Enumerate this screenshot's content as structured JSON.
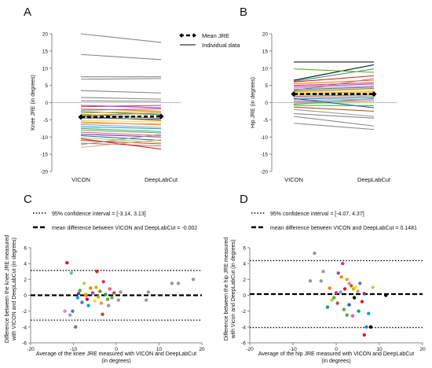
{
  "colors": {
    "axis": "#888888",
    "mean": "#000000",
    "palette": [
      "#e41a1c",
      "#377eb8",
      "#4daf4a",
      "#984ea3",
      "#ff7f00",
      "#c8b400",
      "#a65628",
      "#f781bf",
      "#999999",
      "#66c2a5",
      "#fc8d62",
      "#8da0cb",
      "#e78ac3",
      "#a6d854",
      "#ffd92f",
      "#1b9e77",
      "#d95f02",
      "#7570b3",
      "#e7298a",
      "#66a61e",
      "#e6ab02",
      "#a6761d",
      "#00a6d6",
      "#ff4fa0",
      "#5aae61",
      "#f4a582",
      "#b2182b",
      "#2166ac",
      "#6a3d9a",
      "#b15928"
    ]
  },
  "chart_data": [
    {
      "panel": "A",
      "type": "line",
      "categories": [
        "VICON",
        "DeepLabCut"
      ],
      "ylabel": "Knee JRE (in degrees)",
      "ylim": [
        -20,
        20
      ],
      "yticks": [
        -20,
        -15,
        -10,
        -5,
        0,
        5,
        10,
        15,
        20
      ],
      "legend": {
        "placement": "top-right",
        "items": [
          "Mean JRE",
          "Individual data"
        ]
      },
      "mean": [
        -4.2,
        -4.0
      ],
      "series": [
        {
          "values": [
            20,
            17.5
          ],
          "color": "#888888"
        },
        {
          "values": [
            14,
            12.5
          ],
          "color": "#888888"
        },
        {
          "values": [
            7.5,
            7.5
          ],
          "color": "#888888"
        },
        {
          "values": [
            6.8,
            7.0
          ],
          "color": "#888888"
        },
        {
          "values": [
            3.5,
            2.8
          ],
          "color": "#888888"
        },
        {
          "values": [
            1.5,
            1.0
          ],
          "color": "#888888"
        },
        {
          "values": [
            0.5,
            0.4
          ],
          "color": "#888888"
        },
        {
          "values": [
            -0.8,
            -1.5
          ],
          "color": "#e7298a"
        },
        {
          "values": [
            -1.2,
            -0.8
          ],
          "color": "#984ea3"
        },
        {
          "values": [
            -1.8,
            -2.5
          ],
          "color": "#ff7f00"
        },
        {
          "values": [
            -2.2,
            -1.8
          ],
          "color": "#7570b3"
        },
        {
          "values": [
            -2.6,
            -3.5
          ],
          "color": "#1b9e77"
        },
        {
          "values": [
            -3.0,
            -2.6
          ],
          "color": "#e6ab02"
        },
        {
          "values": [
            -3.4,
            -4.6
          ],
          "color": "#66a61e"
        },
        {
          "values": [
            -3.8,
            -3.0
          ],
          "color": "#a6761d"
        },
        {
          "values": [
            -4.0,
            -5.2
          ],
          "color": "#e41a1c"
        },
        {
          "values": [
            -4.5,
            -4.8
          ],
          "color": "#377eb8"
        },
        {
          "values": [
            -5.2,
            -5.6
          ],
          "color": "#ffd92f"
        },
        {
          "values": [
            -5.6,
            -6.5
          ],
          "color": "#c8b400"
        },
        {
          "values": [
            -6.0,
            -6.2
          ],
          "color": "#fc8d62"
        },
        {
          "values": [
            -6.4,
            -7.2
          ],
          "color": "#8da0cb"
        },
        {
          "values": [
            -7.0,
            -7.6
          ],
          "color": "#00a6d6"
        },
        {
          "values": [
            -7.5,
            -8.4
          ],
          "color": "#4daf4a"
        },
        {
          "values": [
            -8.0,
            -8.8
          ],
          "color": "#5aae61"
        },
        {
          "values": [
            -8.6,
            -9.6
          ],
          "color": "#ff4fa0"
        },
        {
          "values": [
            -9.2,
            -10.0
          ],
          "color": "#6a3d9a"
        },
        {
          "values": [
            -9.6,
            -11.0
          ],
          "color": "#2166ac"
        },
        {
          "values": [
            -10.2,
            -11.6
          ],
          "color": "#a6d854"
        },
        {
          "values": [
            -11.0,
            -12.0
          ],
          "color": "#b15928"
        },
        {
          "values": [
            -11.8,
            -12.6
          ],
          "color": "#888888"
        },
        {
          "values": [
            -10.5,
            -13.5
          ],
          "color": "#e41a1c"
        },
        {
          "values": [
            -13.0,
            -10.8
          ],
          "color": "#f4a582"
        },
        {
          "values": [
            -12.2,
            -9.2
          ],
          "color": "#999999"
        }
      ]
    },
    {
      "panel": "B",
      "type": "line",
      "categories": [
        "VICON",
        "DeepLabCut"
      ],
      "ylabel": "Hip JRE (in degrees)",
      "ylim": [
        -20,
        20
      ],
      "yticks": [
        -20,
        -15,
        -10,
        -5,
        0,
        5,
        10,
        15,
        20
      ],
      "mean": [
        2.5,
        2.5
      ],
      "series": [
        {
          "values": [
            11.8,
            11.8
          ],
          "color": "#000000"
        },
        {
          "values": [
            6.5,
            11.0
          ],
          "color": "#000000"
        },
        {
          "values": [
            6.2,
            9.8
          ],
          "color": "#1b9e77"
        },
        {
          "values": [
            9.8,
            8.8
          ],
          "color": "#66a61e"
        },
        {
          "values": [
            6.0,
            7.8
          ],
          "color": "#e41a1c"
        },
        {
          "values": [
            5.5,
            6.5
          ],
          "color": "#ff7f00"
        },
        {
          "values": [
            5.0,
            5.8
          ],
          "color": "#e7298a"
        },
        {
          "values": [
            4.6,
            5.4
          ],
          "color": "#984ea3"
        },
        {
          "values": [
            4.2,
            4.9
          ],
          "color": "#f781bf"
        },
        {
          "values": [
            3.8,
            4.5
          ],
          "color": "#377eb8"
        },
        {
          "values": [
            3.3,
            4.1
          ],
          "color": "#a6761d"
        },
        {
          "values": [
            3.0,
            3.6
          ],
          "color": "#ffd92f"
        },
        {
          "values": [
            2.6,
            3.2
          ],
          "color": "#e6ab02"
        },
        {
          "values": [
            2.2,
            2.8
          ],
          "color": "#c8b400"
        },
        {
          "values": [
            1.8,
            2.3
          ],
          "color": "#7570b3"
        },
        {
          "values": [
            1.4,
            1.9
          ],
          "color": "#fc8d62"
        },
        {
          "values": [
            1.0,
            1.5
          ],
          "color": "#00a6d6"
        },
        {
          "values": [
            0.6,
            1.0
          ],
          "color": "#8da0cb"
        },
        {
          "values": [
            0.2,
            0.5
          ],
          "color": "#ff4fa0"
        },
        {
          "values": [
            -0.3,
            0.0
          ],
          "color": "#a6d854"
        },
        {
          "values": [
            -0.8,
            -0.9
          ],
          "color": "#4daf4a"
        },
        {
          "values": [
            -1.3,
            -2.5
          ],
          "color": "#b15928"
        },
        {
          "values": [
            -2.0,
            -4.0
          ],
          "color": "#999999"
        },
        {
          "values": [
            -3.2,
            -4.5
          ],
          "color": "#888888"
        },
        {
          "values": [
            -4.0,
            -6.8
          ],
          "color": "#888888"
        },
        {
          "values": [
            -6.0,
            -7.8
          ],
          "color": "#888888"
        },
        {
          "values": [
            3.5,
            7.0
          ],
          "color": "#888888"
        },
        {
          "values": [
            -0.5,
            1.2
          ],
          "color": "#5aae61"
        },
        {
          "values": [
            1.2,
            -1.5
          ],
          "color": "#2166ac"
        }
      ]
    },
    {
      "panel": "C",
      "type": "scatter",
      "xlabel": "Average of the knee JRE measured with VICON and DeepLabCut\n(in degrees)",
      "ylabel": "Difference between the knee JRE measured\nwith VICON and DeepLabCut (in degrees)",
      "xlim": [
        -20,
        20
      ],
      "ylim": [
        -6,
        6
      ],
      "xticks": [
        -20,
        -10,
        0,
        10,
        20
      ],
      "yticks": [
        -6,
        -4,
        -2,
        0,
        2,
        4,
        6
      ],
      "legend": {
        "placement": "top",
        "items": [
          "95% confidence interval = [-3.14, 3.13]",
          "mean difference between VICON and DeepLabCut = -0.002"
        ]
      },
      "mean_diff": -0.002,
      "ci": [
        -3.14,
        3.13
      ],
      "points": [
        {
          "x": -11.5,
          "y": 4.1,
          "color": "#e41a1c"
        },
        {
          "x": -4.5,
          "y": 3.0,
          "color": "#e41a1c"
        },
        {
          "x": -10.5,
          "y": 2.8,
          "color": "#66c2a5"
        },
        {
          "x": -10.2,
          "y": -2.0,
          "color": "#377eb8"
        },
        {
          "x": -9.5,
          "y": -4.0,
          "color": "#7570b3"
        },
        {
          "x": -10.8,
          "y": -2.5,
          "color": "#8da0cb"
        },
        {
          "x": -12.0,
          "y": -2.0,
          "color": "#f781bf"
        },
        {
          "x": -9.0,
          "y": -0.3,
          "color": "#00a6d6"
        },
        {
          "x": -8.5,
          "y": 0.6,
          "color": "#4daf4a"
        },
        {
          "x": -8.0,
          "y": -0.9,
          "color": "#377eb8"
        },
        {
          "x": -7.5,
          "y": 1.5,
          "color": "#a6d854"
        },
        {
          "x": -7.0,
          "y": 0.0,
          "color": "#e7298a"
        },
        {
          "x": -6.5,
          "y": -1.3,
          "color": "#00a6d6"
        },
        {
          "x": -6.0,
          "y": 0.9,
          "color": "#ff7f00"
        },
        {
          "x": -5.5,
          "y": 0.3,
          "color": "#984ea3"
        },
        {
          "x": -5.0,
          "y": -0.7,
          "color": "#ffd92f"
        },
        {
          "x": -4.7,
          "y": 1.0,
          "color": "#e6ab02"
        },
        {
          "x": -4.2,
          "y": -0.2,
          "color": "#c8b400"
        },
        {
          "x": -3.8,
          "y": 0.5,
          "color": "#a6761d"
        },
        {
          "x": -3.5,
          "y": -1.0,
          "color": "#fc8d62"
        },
        {
          "x": -3.0,
          "y": 1.7,
          "color": "#e7298a"
        },
        {
          "x": -2.5,
          "y": 0.1,
          "color": "#1b9e77"
        },
        {
          "x": -2.0,
          "y": -0.5,
          "color": "#66a61e"
        },
        {
          "x": -1.5,
          "y": 0.8,
          "color": "#ff4fa0"
        },
        {
          "x": -1.0,
          "y": -0.3,
          "color": "#5aae61"
        },
        {
          "x": -0.5,
          "y": 0.3,
          "color": "#b15928"
        },
        {
          "x": -6.8,
          "y": -0.5,
          "color": "#b2182b"
        },
        {
          "x": -8.8,
          "y": 0.2,
          "color": "#6a3d9a"
        },
        {
          "x": -1.8,
          "y": -1.3,
          "color": "#999999"
        },
        {
          "x": -3.2,
          "y": -2.4,
          "color": "#a65628"
        },
        {
          "x": -7.2,
          "y": 0.1,
          "color": "#e6ab02"
        },
        {
          "x": 1.0,
          "y": 0.4,
          "color": "#999999"
        },
        {
          "x": 0.5,
          "y": -0.6,
          "color": "#999999"
        },
        {
          "x": 7.5,
          "y": 0.4,
          "color": "#999999"
        },
        {
          "x": 7.0,
          "y": -0.6,
          "color": "#999999"
        },
        {
          "x": 13.0,
          "y": 1.5,
          "color": "#999999"
        },
        {
          "x": 14.5,
          "y": 1.5,
          "color": "#999999"
        },
        {
          "x": 18.0,
          "y": 2.0,
          "color": "#999999"
        }
      ]
    },
    {
      "panel": "D",
      "type": "scatter",
      "xlabel": "Average of the hip JRE measured with VICON and DeepLabCut\n(in degrees)",
      "ylabel": "Difference between the hip JRE measured\nwith Vicon and DeepLabCut (in degrees)",
      "xlim": [
        -20,
        20
      ],
      "ylim": [
        -6,
        6
      ],
      "xticks": [
        -20,
        -10,
        0,
        10,
        20
      ],
      "yticks": [
        -6,
        -4,
        -2,
        0,
        2,
        4,
        6
      ],
      "legend": {
        "placement": "top",
        "items": [
          "95% confidence interval = [-4.07, 4.37]",
          "mean difference between VICON and DeepLabCut = 0.1481"
        ]
      },
      "mean_diff": 0.1481,
      "ci": [
        -4.07,
        4.37
      ],
      "points": [
        {
          "x": -5.0,
          "y": 5.3,
          "color": "#999999"
        },
        {
          "x": -3.0,
          "y": 3.0,
          "color": "#999999"
        },
        {
          "x": -6.0,
          "y": 1.8,
          "color": "#999999"
        },
        {
          "x": -3.5,
          "y": 1.8,
          "color": "#999999"
        },
        {
          "x": 1.5,
          "y": 4.0,
          "color": "#e7298a"
        },
        {
          "x": 0.5,
          "y": 2.8,
          "color": "#984ea3"
        },
        {
          "x": 1.2,
          "y": 2.3,
          "color": "#ff7f00"
        },
        {
          "x": 2.5,
          "y": 2.0,
          "color": "#e6ab02"
        },
        {
          "x": 3.0,
          "y": 1.5,
          "color": "#f781bf"
        },
        {
          "x": 3.5,
          "y": 1.2,
          "color": "#a6761d"
        },
        {
          "x": 4.0,
          "y": 0.8,
          "color": "#c8b400"
        },
        {
          "x": 4.5,
          "y": 1.0,
          "color": "#ffd92f"
        },
        {
          "x": 5.0,
          "y": 0.5,
          "color": "#fc8d62"
        },
        {
          "x": 5.5,
          "y": 1.5,
          "color": "#7570b3"
        },
        {
          "x": 2.0,
          "y": 0.8,
          "color": "#e41a1c"
        },
        {
          "x": 1.0,
          "y": 0.4,
          "color": "#8da0cb"
        },
        {
          "x": 0.0,
          "y": 0.3,
          "color": "#e7298a"
        },
        {
          "x": -0.5,
          "y": -0.3,
          "color": "#66a61e"
        },
        {
          "x": -1.5,
          "y": 0.9,
          "color": "#ff7f00"
        },
        {
          "x": -2.0,
          "y": -1.5,
          "color": "#1b9e77"
        },
        {
          "x": -1.0,
          "y": -0.6,
          "color": "#a6d854"
        },
        {
          "x": 0.3,
          "y": -1.0,
          "color": "#b15928"
        },
        {
          "x": 1.8,
          "y": -1.8,
          "color": "#4daf4a"
        },
        {
          "x": 3.0,
          "y": -1.2,
          "color": "#2166ac"
        },
        {
          "x": 4.2,
          "y": -0.3,
          "color": "#000000"
        },
        {
          "x": 5.2,
          "y": -2.0,
          "color": "#1b9e77"
        },
        {
          "x": 6.0,
          "y": -0.8,
          "color": "#e41a1c"
        },
        {
          "x": 7.0,
          "y": -4.0,
          "color": "#377eb8"
        },
        {
          "x": 8.0,
          "y": -4.0,
          "color": "#000000"
        },
        {
          "x": 8.5,
          "y": 1.0,
          "color": "#a6d854"
        },
        {
          "x": 7.5,
          "y": -2.3,
          "color": "#00a6d6"
        },
        {
          "x": 6.5,
          "y": -5.0,
          "color": "#e41a1c"
        },
        {
          "x": 2.5,
          "y": -2.5,
          "color": "#4daf4a"
        },
        {
          "x": 3.8,
          "y": -2.6,
          "color": "#ff4fa0"
        },
        {
          "x": 6.5,
          "y": 0.2,
          "color": "#6a3d9a"
        },
        {
          "x": 11.5,
          "y": 0.0,
          "color": "#000000"
        }
      ]
    }
  ]
}
